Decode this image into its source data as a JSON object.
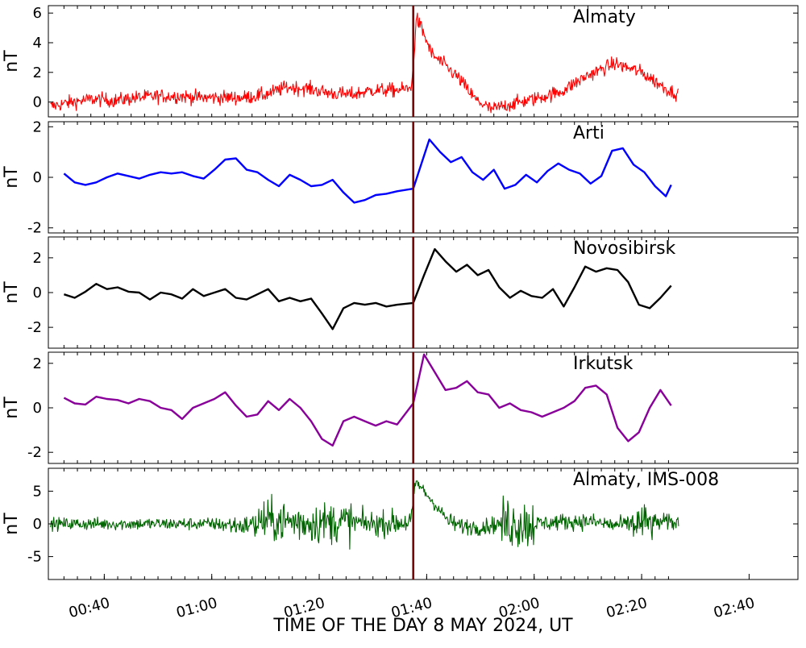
{
  "figure": {
    "xlabel": "TIME OF THE DAY 8 MAY 2024, UT",
    "event_line_time_min": 97.5,
    "event_line_color": "#7a0000",
    "x_range_min": [
      30,
      147
    ]
  },
  "chart_data": [
    {
      "type": "line",
      "title": "Almaty",
      "ylabel": "nT",
      "ylim": [
        -1.0,
        6.5
      ],
      "yticks": [
        0,
        2,
        4,
        6
      ],
      "color": "#ff0000",
      "noise": 0.45,
      "x_min": [
        30,
        34,
        38,
        42,
        46,
        50,
        54,
        58,
        62,
        66,
        70,
        74,
        78,
        82,
        86,
        90,
        94,
        97,
        97.6,
        98,
        99,
        101,
        103,
        106,
        109,
        112,
        115,
        120,
        125,
        130,
        135,
        140,
        145,
        147
      ],
      "values": [
        -0.3,
        0.0,
        0.2,
        0.1,
        0.3,
        0.4,
        0.4,
        0.3,
        0.3,
        0.3,
        0.5,
        1.0,
        0.9,
        0.6,
        0.5,
        0.8,
        0.8,
        0.9,
        2.5,
        5.7,
        5.0,
        3.2,
        2.6,
        1.6,
        0.2,
        -0.5,
        -0.2,
        0.2,
        0.7,
        1.8,
        2.6,
        2.0,
        0.8,
        0.5
      ]
    },
    {
      "type": "line",
      "title": "Arti",
      "ylabel": "nT",
      "ylim": [
        -2.2,
        2.2
      ],
      "yticks": [
        -2,
        0,
        2
      ],
      "color": "#0000ff",
      "x_min": [
        32.5,
        34.5,
        36.5,
        38.5,
        40.5,
        42.5,
        44.5,
        46.5,
        48.5,
        50.5,
        52.5,
        54.5,
        56.5,
        58.5,
        60.5,
        62.5,
        64.5,
        66.5,
        68.5,
        70.5,
        72.5,
        74.5,
        76.5,
        78.5,
        80.5,
        82.5,
        84.5,
        86.5,
        88.5,
        90.5,
        92.5,
        94.5,
        97.5,
        100.5,
        102.5,
        104.5,
        106.5,
        108.5,
        110.5,
        112.5,
        114.5,
        116.5,
        118.5,
        120.5,
        122.5,
        124.5,
        126.5,
        128.5,
        130.5,
        132.5,
        134.5,
        136.5,
        138.5,
        140.5,
        142.5,
        144.5,
        145.5
      ],
      "values": [
        0.15,
        -0.2,
        -0.3,
        -0.2,
        0.0,
        0.15,
        0.05,
        -0.05,
        0.1,
        0.2,
        0.15,
        0.2,
        0.05,
        -0.05,
        0.3,
        0.7,
        0.75,
        0.3,
        0.2,
        -0.1,
        -0.35,
        0.1,
        -0.1,
        -0.35,
        -0.3,
        -0.1,
        -0.6,
        -1.0,
        -0.9,
        -0.7,
        -0.65,
        -0.55,
        -0.45,
        1.5,
        1.0,
        0.6,
        0.8,
        0.2,
        -0.1,
        0.3,
        -0.45,
        -0.3,
        0.1,
        -0.2,
        0.25,
        0.55,
        0.3,
        0.15,
        -0.25,
        0.05,
        1.05,
        1.15,
        0.5,
        0.2,
        -0.35,
        -0.75,
        -0.3
      ]
    },
    {
      "type": "line",
      "title": "Novosibirsk",
      "ylabel": "nT",
      "ylim": [
        -3.2,
        3.2
      ],
      "yticks": [
        -2,
        0,
        2
      ],
      "color": "#000000",
      "x_min": [
        32.5,
        34.5,
        36.5,
        38.5,
        40.5,
        42.5,
        44.5,
        46.5,
        48.5,
        50.5,
        52.5,
        54.5,
        56.5,
        58.5,
        60.5,
        62.5,
        64.5,
        66.5,
        68.5,
        70.5,
        72.5,
        74.5,
        76.5,
        78.5,
        80.5,
        82.5,
        84.5,
        86.5,
        88.5,
        90.5,
        92.5,
        94.5,
        97.5,
        99.5,
        101.5,
        103.5,
        105.5,
        107.5,
        109.5,
        111.5,
        113.5,
        115.5,
        117.5,
        119.5,
        121.5,
        123.5,
        125.5,
        127.5,
        129.5,
        131.5,
        133.5,
        135.5,
        137.5,
        139.5,
        141.5,
        143.5,
        145.5
      ],
      "values": [
        -0.1,
        -0.3,
        0.05,
        0.5,
        0.2,
        0.3,
        0.05,
        0.0,
        -0.4,
        0.0,
        -0.1,
        -0.35,
        0.2,
        -0.2,
        0.0,
        0.2,
        -0.3,
        -0.4,
        -0.1,
        0.2,
        -0.5,
        -0.3,
        -0.5,
        -0.35,
        -1.2,
        -2.1,
        -0.9,
        -0.6,
        -0.7,
        -0.6,
        -0.8,
        -0.7,
        -0.6,
        1.0,
        2.5,
        1.8,
        1.2,
        1.6,
        1.0,
        1.3,
        0.3,
        -0.3,
        0.1,
        -0.2,
        -0.3,
        0.2,
        -0.8,
        0.3,
        1.5,
        1.2,
        1.4,
        1.3,
        0.6,
        -0.7,
        -0.9,
        -0.3,
        0.4
      ]
    },
    {
      "type": "line",
      "title": "Irkutsk",
      "ylabel": "nT",
      "ylim": [
        -2.5,
        2.5
      ],
      "yticks": [
        -2,
        0,
        2
      ],
      "color": "#880099",
      "x_min": [
        32.5,
        34.5,
        36.5,
        38.5,
        40.5,
        42.5,
        44.5,
        46.5,
        48.5,
        50.5,
        52.5,
        54.5,
        56.5,
        58.5,
        60.5,
        62.5,
        64.5,
        66.5,
        68.5,
        70.5,
        72.5,
        74.5,
        76.5,
        78.5,
        80.5,
        82.5,
        84.5,
        86.5,
        88.5,
        90.5,
        92.5,
        94.5,
        97.5,
        99.5,
        101.5,
        103.5,
        105.5,
        107.5,
        109.5,
        111.5,
        113.5,
        115.5,
        117.5,
        119.5,
        121.5,
        123.5,
        125.5,
        127.5,
        129.5,
        131.5,
        133.5,
        135.5,
        137.5,
        139.5,
        141.5,
        143.5,
        145.5
      ],
      "values": [
        0.45,
        0.2,
        0.15,
        0.5,
        0.4,
        0.35,
        0.2,
        0.4,
        0.3,
        0.0,
        -0.1,
        -0.5,
        0.0,
        0.2,
        0.4,
        0.7,
        0.1,
        -0.4,
        -0.3,
        0.3,
        -0.1,
        0.4,
        0.0,
        -0.6,
        -1.4,
        -1.7,
        -0.6,
        -0.4,
        -0.6,
        -0.8,
        -0.6,
        -0.75,
        0.2,
        2.4,
        1.6,
        0.8,
        0.9,
        1.2,
        0.7,
        0.6,
        0.0,
        0.2,
        -0.1,
        -0.2,
        -0.4,
        -0.2,
        0.0,
        0.3,
        0.9,
        1.0,
        0.6,
        -0.9,
        -1.5,
        -1.1,
        0.0,
        0.8,
        0.1
      ]
    },
    {
      "type": "line",
      "title": "Almaty, IMS-008",
      "ylabel": "nT",
      "ylim": [
        -8.5,
        8.5
      ],
      "yticks": [
        -5,
        0,
        5
      ],
      "color": "#006400",
      "x_min": [
        30,
        40,
        50,
        60,
        66,
        70,
        75,
        80,
        85,
        90,
        95,
        97,
        97.6,
        98,
        100,
        102,
        104,
        106,
        110,
        115,
        120,
        125,
        130,
        135,
        140,
        145,
        147
      ],
      "values": [
        0,
        0,
        0,
        0,
        -0.3,
        0.5,
        0.3,
        0.2,
        0.3,
        0.0,
        0.2,
        0.3,
        4.0,
        6.5,
        4.5,
        2.5,
        0.5,
        -0.3,
        -0.5,
        0.2,
        0.0,
        0.3,
        0.4,
        -0.2,
        0.1,
        0.3,
        0.0
      ],
      "noise_segments": [
        [
          30,
          62,
          0.9
        ],
        [
          62,
          68,
          1.4
        ],
        [
          68,
          86,
          3.0
        ],
        [
          86,
          97,
          1.8
        ],
        [
          97,
          104,
          0.9
        ],
        [
          104,
          114,
          1.2
        ],
        [
          114,
          120,
          3.8
        ],
        [
          120,
          147,
          1.2
        ],
        [
          138,
          142,
          2.8
        ]
      ]
    }
  ],
  "x_axis": {
    "ticks": [
      {
        "t": 40,
        "label": "00:40"
      },
      {
        "t": 60,
        "label": "01:00"
      },
      {
        "t": 80,
        "label": "01:20"
      },
      {
        "t": 100,
        "label": "01:40"
      },
      {
        "t": 120,
        "label": "02:00"
      },
      {
        "t": 140,
        "label": "02:20"
      },
      {
        "t": 160,
        "label": "02:40"
      }
    ]
  }
}
